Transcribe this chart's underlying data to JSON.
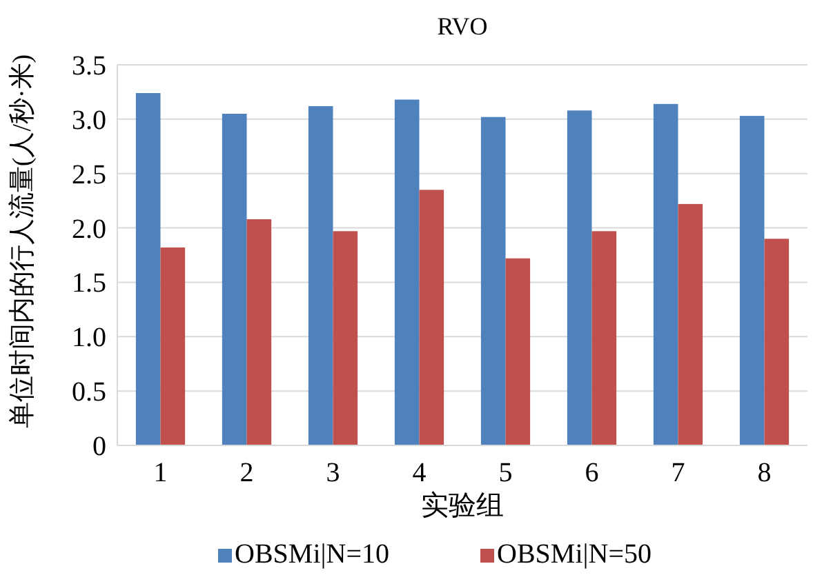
{
  "chart_data": {
    "type": "bar",
    "title": "RVO",
    "xlabel": "实验组",
    "ylabel": "单位时间内的行人流量(人/秒·米)",
    "categories": [
      "1",
      "2",
      "3",
      "4",
      "5",
      "6",
      "7",
      "8"
    ],
    "series": [
      {
        "name": "OBSMi|N=10",
        "color": "#4f81bd",
        "values": [
          3.24,
          3.05,
          3.12,
          3.18,
          3.02,
          3.08,
          3.14,
          3.03
        ]
      },
      {
        "name": "OBSMi|N=50",
        "color": "#c0504d",
        "values": [
          1.82,
          2.08,
          1.97,
          2.35,
          1.72,
          1.97,
          2.22,
          1.9
        ]
      }
    ],
    "ylim": [
      0,
      3.5
    ],
    "yticks": [
      {
        "value": 0,
        "label": "0"
      },
      {
        "value": 0.5,
        "label": "0.5"
      },
      {
        "value": 1,
        "label": "1.0"
      },
      {
        "value": 1.5,
        "label": "1.5"
      },
      {
        "value": 2,
        "label": "2.0"
      },
      {
        "value": 2.5,
        "label": "2.5"
      },
      {
        "value": 3,
        "label": "3.0"
      },
      {
        "value": 3.5,
        "label": "3.5"
      }
    ],
    "grid": "y",
    "legend": "bottom"
  }
}
